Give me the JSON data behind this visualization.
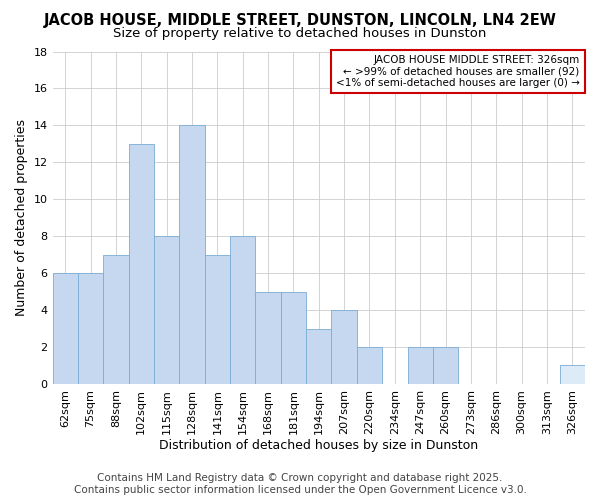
{
  "title": "JACOB HOUSE, MIDDLE STREET, DUNSTON, LINCOLN, LN4 2EW",
  "subtitle": "Size of property relative to detached houses in Dunston",
  "xlabel": "Distribution of detached houses by size in Dunston",
  "ylabel": "Number of detached properties",
  "bar_values": [
    6,
    6,
    7,
    13,
    8,
    14,
    7,
    8,
    5,
    5,
    3,
    4,
    2,
    0,
    2,
    2,
    0,
    0,
    0,
    0,
    1
  ],
  "bar_labels": [
    "62sqm",
    "75sqm",
    "88sqm",
    "102sqm",
    "115sqm",
    "128sqm",
    "141sqm",
    "154sqm",
    "168sqm",
    "181sqm",
    "194sqm",
    "207sqm",
    "220sqm",
    "234sqm",
    "247sqm",
    "260sqm",
    "273sqm",
    "286sqm",
    "300sqm",
    "313sqm",
    "326sqm"
  ],
  "bar_color": "#c5d8f0",
  "bar_edge_color": "#7aadd4",
  "highlight_index": 20,
  "highlight_color": "#ddeaf7",
  "ylim": [
    0,
    18
  ],
  "yticks": [
    0,
    2,
    4,
    6,
    8,
    10,
    12,
    14,
    16,
    18
  ],
  "annotation_title": "JACOB HOUSE MIDDLE STREET: 326sqm",
  "annotation_line2": "← >99% of detached houses are smaller (92)",
  "annotation_line3": "<1% of semi-detached houses are larger (0) →",
  "annotation_box_color": "#ffffff",
  "annotation_box_edge": "#cc0000",
  "footer_line1": "Contains HM Land Registry data © Crown copyright and database right 2025.",
  "footer_line2": "Contains public sector information licensed under the Open Government Licence v3.0.",
  "background_color": "#ffffff",
  "grid_color": "#cccccc",
  "title_fontsize": 10.5,
  "subtitle_fontsize": 9.5,
  "axis_fontsize": 9,
  "tick_fontsize": 8,
  "footer_fontsize": 7.5
}
